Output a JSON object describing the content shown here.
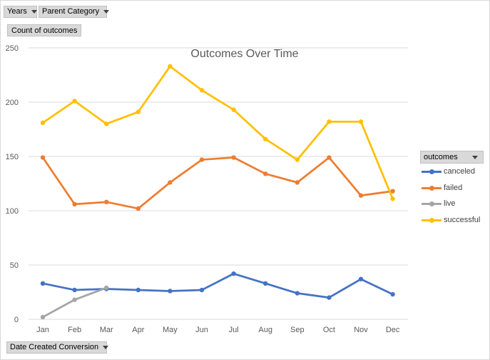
{
  "filters": {
    "years_label": "Years",
    "parent_category_label": "Parent Category",
    "values_label": "Count of outcomes",
    "axis_field_label": "Date Created Conversion"
  },
  "legend": {
    "header": "outcomes"
  },
  "chart_data": {
    "type": "line",
    "title": "Outcomes Over Time",
    "categories": [
      "Jan",
      "Feb",
      "Mar",
      "Apr",
      "May",
      "Jun",
      "Jul",
      "Aug",
      "Sep",
      "Oct",
      "Nov",
      "Dec"
    ],
    "ylim": [
      0,
      250
    ],
    "yticks": [
      0,
      50,
      100,
      150,
      200,
      250
    ],
    "grid": true,
    "legend_position": "right",
    "series": [
      {
        "name": "canceled",
        "color": "#4472c4",
        "values": [
          33,
          27,
          28,
          27,
          26,
          27,
          42,
          33,
          24,
          20,
          37,
          23
        ]
      },
      {
        "name": "failed",
        "color": "#ed7d31",
        "values": [
          149,
          106,
          108,
          102,
          126,
          147,
          149,
          134,
          126,
          149,
          114,
          118
        ]
      },
      {
        "name": "live",
        "color": "#a5a5a5",
        "values": [
          2,
          18,
          29,
          null,
          null,
          null,
          null,
          null,
          null,
          null,
          null,
          null
        ]
      },
      {
        "name": "successful",
        "color": "#ffc000",
        "values": [
          181,
          201,
          180,
          191,
          233,
          211,
          193,
          166,
          147,
          182,
          182,
          111
        ]
      }
    ]
  }
}
